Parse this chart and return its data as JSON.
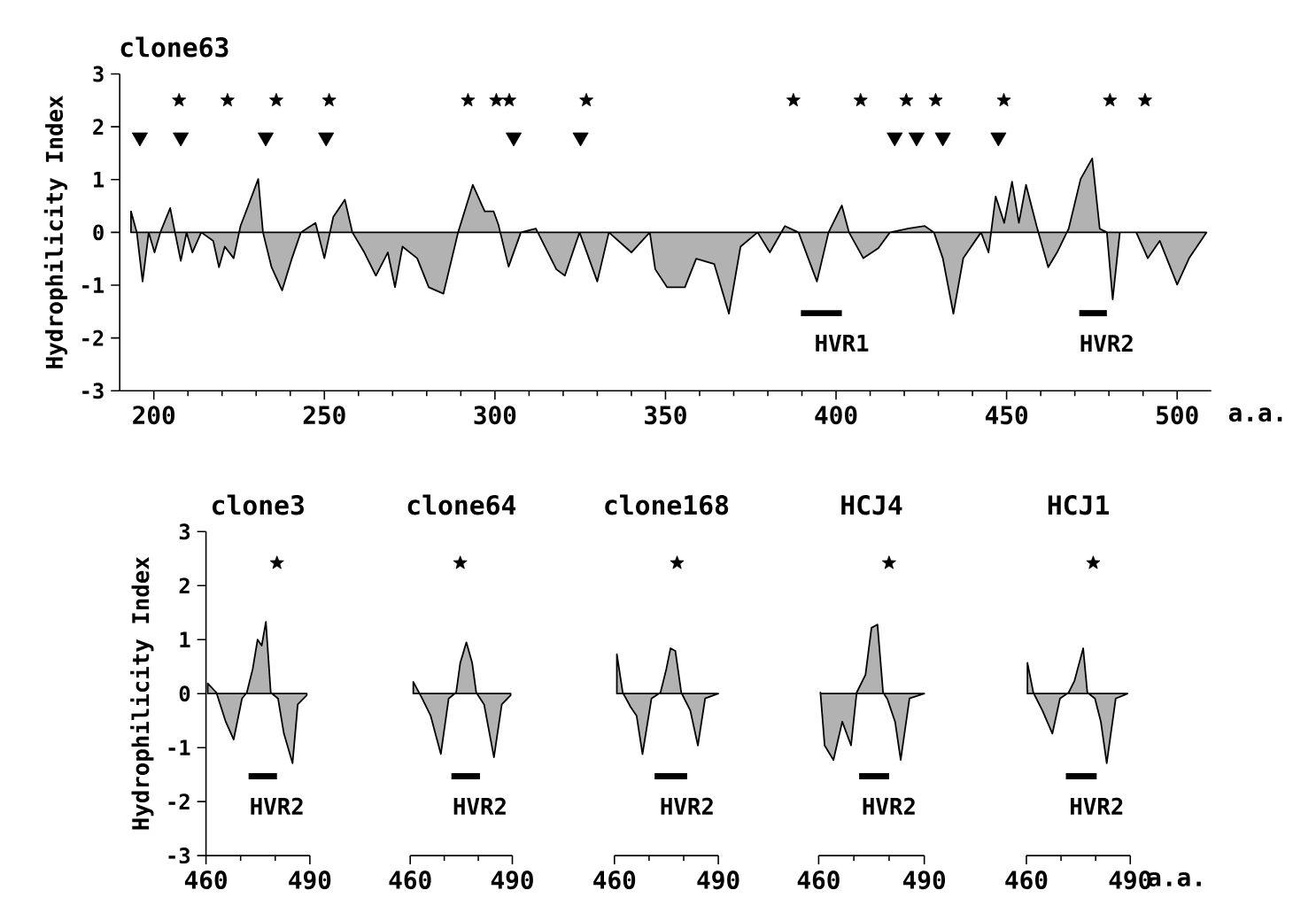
{
  "chart_data": [
    {
      "type": "area",
      "title": "clone63",
      "xlabel": "a.a.",
      "ylabel": "Hydrophilicity Index",
      "xlim": [
        190,
        510
      ],
      "ylim": [
        -3,
        3
      ],
      "xticks": [
        200,
        250,
        300,
        350,
        400,
        450,
        500
      ],
      "yticks": [
        -3,
        -2,
        -1,
        0,
        1,
        2,
        3
      ],
      "series": [
        {
          "color": "#000000",
          "x": [
            193.3,
            195,
            196.7,
            198.5,
            200.2,
            201.9,
            204.8,
            206.2,
            207.9,
            209.6,
            211.3,
            213.9,
            217.4,
            219.1,
            220.8,
            223.4,
            225.4,
            227.7,
            230.6,
            232,
            234.5,
            237.6,
            240.5,
            243.1,
            247.4,
            250,
            252.6,
            256,
            258.2,
            261.7,
            265.1,
            268.6,
            270.7,
            272.9,
            277.2,
            280.6,
            284.9,
            289.2,
            293.5,
            297,
            299.6,
            301,
            304,
            307.6,
            312,
            318,
            320.5,
            324.8,
            330,
            333.4,
            340,
            345.4,
            347,
            350.5,
            355.7,
            359,
            364.3,
            368.6,
            372,
            377,
            380.6,
            385,
            389,
            394.4,
            397.8,
            401.7,
            403.8,
            408,
            412.4,
            415.8,
            421,
            426,
            428.7,
            431.3,
            434.4,
            437.3,
            442.5,
            444.7,
            446.8,
            449.3,
            451.6,
            453.6,
            455.7,
            458.8,
            462.2,
            464.8,
            468.2,
            471.7,
            475.1,
            477.3,
            479.4,
            481.1,
            483.2,
            488,
            491.4,
            494.9,
            500,
            503.5,
            508.6
          ],
          "values": [
            0.4,
            0,
            -0.93,
            0,
            -0.38,
            0,
            0.46,
            0,
            -0.54,
            0,
            -0.38,
            0,
            -0.16,
            -0.66,
            -0.27,
            -0.49,
            0.12,
            0.51,
            1.01,
            0,
            -0.66,
            -1.1,
            -0.49,
            0,
            0.18,
            -0.49,
            0.29,
            0.62,
            0,
            -0.38,
            -0.82,
            -0.38,
            -1.04,
            -0.27,
            -0.49,
            -1.04,
            -1.16,
            0,
            0.9,
            0.4,
            0.4,
            0.15,
            -0.65,
            0,
            0.07,
            -0.7,
            -0.82,
            0,
            -0.93,
            0,
            -0.38,
            0,
            -0.7,
            -1.04,
            -1.04,
            -0.5,
            -0.6,
            -1.54,
            -0.27,
            0,
            -0.38,
            0.12,
            0,
            -0.93,
            0,
            0.51,
            0,
            -0.49,
            -0.3,
            0,
            0.07,
            0.12,
            0,
            -0.49,
            -1.54,
            -0.49,
            0,
            -0.38,
            0.68,
            0.18,
            0.96,
            0.18,
            0.9,
            0.12,
            -0.66,
            -0.38,
            0.07,
            1.01,
            1.4,
            0.07,
            0,
            -1.27,
            0,
            0,
            -0.49,
            -0.16,
            -0.99,
            -0.49,
            0
          ]
        },
        {
          "type": "line",
          "color": "#000000",
          "x": [
            389.7,
            401.7
          ],
          "values": [
            -1.53,
            -1.53
          ]
        },
        {
          "type": "line",
          "color": "#000000",
          "x": [
            471.3,
            479.4
          ],
          "values": [
            -1.53,
            -1.53
          ]
        },
        {
          "type": "scatter",
          "marker": "star",
          "color": "#000000",
          "x": [
            207.4,
            221.6,
            235.9,
            251.4,
            292.1,
            300.4,
            304.2,
            326.8,
            387.5,
            407.2,
            420.6,
            429.2,
            449.2,
            480.3,
            490.6
          ],
          "values": [
            2.5,
            2.5,
            2.5,
            2.5,
            2.5,
            2.5,
            2.5,
            2.5,
            2.5,
            2.5,
            2.5,
            2.5,
            2.5,
            2.5,
            2.5
          ]
        },
        {
          "type": "scatter",
          "marker": "triangle",
          "color": "#000000",
          "x": [
            195.9,
            207.9,
            232.8,
            250.5,
            305.5,
            325.1,
            417.2,
            423.6,
            431.3,
            447.6
          ],
          "values": [
            1.8,
            1.8,
            1.8,
            1.8,
            1.8,
            1.8,
            1.8,
            1.8,
            1.8,
            1.8
          ]
        }
      ],
      "annotations": [
        "HVR1",
        "HVR2"
      ]
    },
    {
      "type": "area",
      "title": "clone3",
      "ylabel": "Hydrophilicity Index",
      "xlim": [
        460,
        490
      ],
      "ylim": [
        -3,
        3
      ],
      "xticks": [
        460,
        490
      ],
      "yticks": [
        -3,
        -2,
        -1,
        0,
        1,
        2,
        3
      ],
      "series": [
        {
          "color": "#000000",
          "x": [
            460.5,
            463,
            465.7,
            468,
            470.4,
            471.8,
            473.5,
            474.9,
            476.1,
            477.3,
            478.7,
            480.8,
            482.5,
            485,
            486.5,
            489.1
          ],
          "values": [
            0.19,
            0.02,
            -0.52,
            -0.85,
            -0.09,
            0.02,
            0.46,
            1.0,
            0.89,
            1.33,
            0.02,
            -0.09,
            -0.74,
            -1.29,
            -0.2,
            -0.03
          ]
        },
        {
          "type": "line",
          "color": "#000000",
          "x": [
            472.3,
            480.5
          ],
          "values": [
            -1.53,
            -1.53
          ]
        },
        {
          "type": "scatter",
          "marker": "star",
          "color": "#000000",
          "x": [
            480.5
          ],
          "values": [
            2.42
          ]
        }
      ],
      "annotations": [
        "HVR2"
      ]
    },
    {
      "type": "area",
      "title": "clone64",
      "tick_labels": "x",
      "xlim": [
        460,
        490
      ],
      "ylim": [
        -3,
        3
      ],
      "xticks": [
        460,
        490
      ],
      "yticks": [
        -3,
        -2,
        -1,
        0,
        1,
        2,
        3
      ],
      "series": [
        {
          "color": "#000000",
          "x": [
            460.9,
            463.5,
            466,
            469,
            471.3,
            473.5,
            474.7,
            476.5,
            478.2,
            479.4,
            481.7,
            484.6,
            486.9,
            489.5
          ],
          "values": [
            0.22,
            -0.09,
            -0.41,
            -1.12,
            -0.09,
            0.02,
            0.57,
            0.95,
            0.57,
            0.02,
            -0.2,
            -1.18,
            -0.2,
            -0.03
          ]
        },
        {
          "type": "line",
          "color": "#000000",
          "x": [
            472.1,
            480.5
          ],
          "values": [
            -1.53,
            -1.53
          ]
        },
        {
          "type": "scatter",
          "marker": "star",
          "color": "#000000",
          "x": [
            474.7
          ],
          "values": [
            2.42
          ]
        }
      ],
      "annotations": [
        "HVR2"
      ]
    },
    {
      "type": "area",
      "title": "clone168",
      "tick_labels": "x",
      "xlim": [
        460,
        490
      ],
      "ylim": [
        -3,
        3
      ],
      "xticks": [
        460,
        490
      ],
      "yticks": [
        -3,
        -2,
        -1,
        0,
        1,
        2,
        3
      ],
      "series": [
        {
          "color": "#000000",
          "x": [
            460.7,
            462.4,
            464.7,
            466.4,
            468.1,
            470.7,
            473.3,
            475,
            476.2,
            477.6,
            479.3,
            481.9,
            484.1,
            486.2,
            490
          ],
          "values": [
            0.73,
            0.02,
            -0.25,
            -0.41,
            -1.12,
            -0.09,
            0.02,
            0.46,
            0.84,
            0.79,
            0.02,
            -0.31,
            -0.96,
            -0.09,
            0
          ]
        },
        {
          "type": "line",
          "color": "#000000",
          "x": [
            471.6,
            481
          ],
          "values": [
            -1.53,
            -1.53
          ]
        },
        {
          "type": "scatter",
          "marker": "star",
          "color": "#000000",
          "x": [
            478.1
          ],
          "values": [
            2.42
          ]
        }
      ],
      "annotations": [
        "HVR2"
      ]
    },
    {
      "type": "area",
      "title": "HCJ4",
      "tick_labels": "x",
      "xlim": [
        460,
        490
      ],
      "ylim": [
        -3,
        3
      ],
      "xticks": [
        460,
        490
      ],
      "yticks": [
        -3,
        -2,
        -1,
        0,
        1,
        2,
        3
      ],
      "series": [
        {
          "color": "#000000",
          "x": [
            460.5,
            461.7,
            464.2,
            466.7,
            469.2,
            470.8,
            473.3,
            475,
            476.7,
            478.3,
            479.5,
            481.7,
            483.3,
            485.8,
            490
          ],
          "values": [
            0.02,
            -0.96,
            -1.23,
            -0.52,
            -0.96,
            0.02,
            0.35,
            1.22,
            1.28,
            0.02,
            -0.1,
            -0.52,
            -1.23,
            -0.09,
            0
          ]
        },
        {
          "type": "line",
          "color": "#000000",
          "x": [
            471.5,
            480
          ],
          "values": [
            -1.53,
            -1.53
          ]
        },
        {
          "type": "scatter",
          "marker": "star",
          "color": "#000000",
          "x": [
            480
          ],
          "values": [
            2.42
          ]
        }
      ],
      "annotations": [
        "HVR2"
      ]
    },
    {
      "type": "area",
      "title": "HCJ1",
      "xlabel": "a.a.",
      "tick_labels": "x",
      "xlim": [
        460,
        490
      ],
      "ylim": [
        -3,
        3
      ],
      "xticks": [
        460,
        490
      ],
      "yticks": [
        -3,
        -2,
        -1,
        0,
        1,
        2,
        3
      ],
      "series": [
        {
          "color": "#000000",
          "x": [
            460.3,
            462,
            464.6,
            467.5,
            469.7,
            472.2,
            473.9,
            476.4,
            477.6,
            479.8,
            481.5,
            483.2,
            485.8,
            489.2
          ],
          "values": [
            0.57,
            0.02,
            -0.31,
            -0.74,
            -0.09,
            0.02,
            0.24,
            0.84,
            0.02,
            -0.09,
            -0.52,
            -1.29,
            -0.09,
            0
          ]
        },
        {
          "type": "line",
          "color": "#000000",
          "x": [
            471.4,
            480.3
          ],
          "values": [
            -1.53,
            -1.53
          ]
        },
        {
          "type": "scatter",
          "marker": "star",
          "color": "#000000",
          "x": [
            479.3
          ],
          "values": [
            2.42
          ]
        }
      ],
      "annotations": [
        "HVR2"
      ]
    }
  ]
}
